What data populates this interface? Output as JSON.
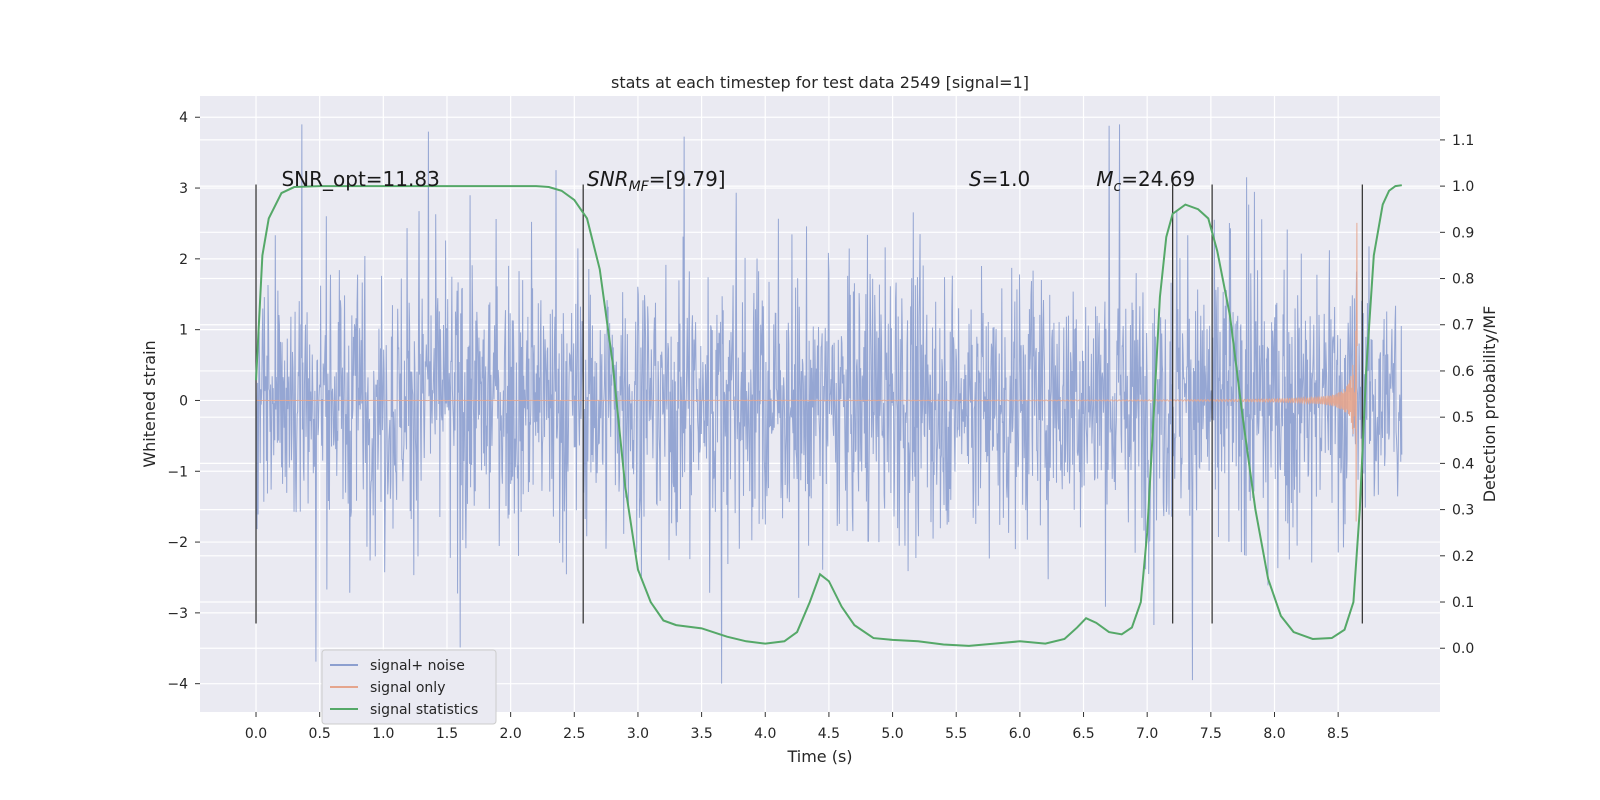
{
  "chart_data": {
    "type": "line",
    "title": "stats at each timestep for test data 2549 [signal=1]",
    "xlabel": "Time (s)",
    "ylabel": "Whitened strain",
    "y2label": "Detection probability/MF",
    "xlim": [
      -0.44,
      9.3
    ],
    "ylim": [
      -4.4,
      4.3
    ],
    "y2lim": [
      -0.138,
      1.195
    ],
    "x_ticks": [
      "0.0",
      "0.5",
      "1.0",
      "1.5",
      "2.0",
      "2.5",
      "3.0",
      "3.5",
      "4.0",
      "4.5",
      "5.0",
      "5.5",
      "6.0",
      "6.5",
      "7.0",
      "7.5",
      "8.0",
      "8.5"
    ],
    "y_ticks": [
      "4",
      "3",
      "2",
      "1",
      "0",
      "−1",
      "−2",
      "−3",
      "−4"
    ],
    "y2_ticks": [
      "1.1",
      "1.0",
      "0.9",
      "0.8",
      "0.7",
      "0.6",
      "0.5",
      "0.4",
      "0.3",
      "0.2",
      "0.1",
      "0.0"
    ],
    "grid": true,
    "legend_position": "bottom-left",
    "annotations": {
      "snr_opt": "SNR_opt=11.83",
      "snr_mf": "SNR_MF=[9.79]",
      "s_value": "S=1.0",
      "chirp_mass": "M_c=24.69"
    },
    "marker_lines_x": [
      0.0,
      2.57,
      7.2,
      7.51,
      8.69
    ],
    "series": [
      {
        "name": "signal+ noise",
        "color": "#8c9fcf",
        "t_range": [
          0.0,
          9.0
        ],
        "typical_amplitude": 1.3,
        "extreme_range": [
          -4.0,
          3.9
        ]
      },
      {
        "name": "signal only",
        "color": "#e5a58d",
        "t_range": [
          0.0,
          8.65
        ],
        "peak_time": 8.65,
        "peak_value": 3.0
      },
      {
        "name": "signal statistics",
        "color": "#55a868",
        "points": [
          [
            0.0,
            0.58
          ],
          [
            0.05,
            0.85
          ],
          [
            0.1,
            0.93
          ],
          [
            0.2,
            0.985
          ],
          [
            0.3,
            0.998
          ],
          [
            0.5,
            1.0
          ],
          [
            1.0,
            1.0
          ],
          [
            1.5,
            1.0
          ],
          [
            2.0,
            1.0
          ],
          [
            2.2,
            1.0
          ],
          [
            2.3,
            0.998
          ],
          [
            2.4,
            0.99
          ],
          [
            2.5,
            0.97
          ],
          [
            2.6,
            0.93
          ],
          [
            2.7,
            0.82
          ],
          [
            2.8,
            0.62
          ],
          [
            2.9,
            0.35
          ],
          [
            3.0,
            0.17
          ],
          [
            3.1,
            0.1
          ],
          [
            3.2,
            0.06
          ],
          [
            3.3,
            0.05
          ],
          [
            3.5,
            0.043
          ],
          [
            3.7,
            0.025
          ],
          [
            3.85,
            0.015
          ],
          [
            4.0,
            0.01
          ],
          [
            4.15,
            0.015
          ],
          [
            4.25,
            0.035
          ],
          [
            4.35,
            0.1
          ],
          [
            4.43,
            0.16
          ],
          [
            4.5,
            0.145
          ],
          [
            4.6,
            0.09
          ],
          [
            4.7,
            0.05
          ],
          [
            4.85,
            0.022
          ],
          [
            5.0,
            0.018
          ],
          [
            5.2,
            0.015
          ],
          [
            5.4,
            0.008
          ],
          [
            5.6,
            0.005
          ],
          [
            5.8,
            0.01
          ],
          [
            6.0,
            0.015
          ],
          [
            6.2,
            0.01
          ],
          [
            6.35,
            0.02
          ],
          [
            6.45,
            0.045
          ],
          [
            6.52,
            0.065
          ],
          [
            6.6,
            0.055
          ],
          [
            6.7,
            0.035
          ],
          [
            6.8,
            0.03
          ],
          [
            6.88,
            0.045
          ],
          [
            6.95,
            0.1
          ],
          [
            7.0,
            0.25
          ],
          [
            7.05,
            0.5
          ],
          [
            7.1,
            0.76
          ],
          [
            7.15,
            0.89
          ],
          [
            7.2,
            0.94
          ],
          [
            7.3,
            0.96
          ],
          [
            7.4,
            0.95
          ],
          [
            7.48,
            0.93
          ],
          [
            7.55,
            0.86
          ],
          [
            7.65,
            0.72
          ],
          [
            7.75,
            0.5
          ],
          [
            7.85,
            0.3
          ],
          [
            7.95,
            0.15
          ],
          [
            8.05,
            0.07
          ],
          [
            8.15,
            0.035
          ],
          [
            8.3,
            0.02
          ],
          [
            8.45,
            0.022
          ],
          [
            8.55,
            0.04
          ],
          [
            8.62,
            0.1
          ],
          [
            8.67,
            0.3
          ],
          [
            8.72,
            0.6
          ],
          [
            8.78,
            0.85
          ],
          [
            8.85,
            0.96
          ],
          [
            8.9,
            0.99
          ],
          [
            8.95,
            1.0
          ],
          [
            9.0,
            1.002
          ]
        ]
      }
    ]
  }
}
